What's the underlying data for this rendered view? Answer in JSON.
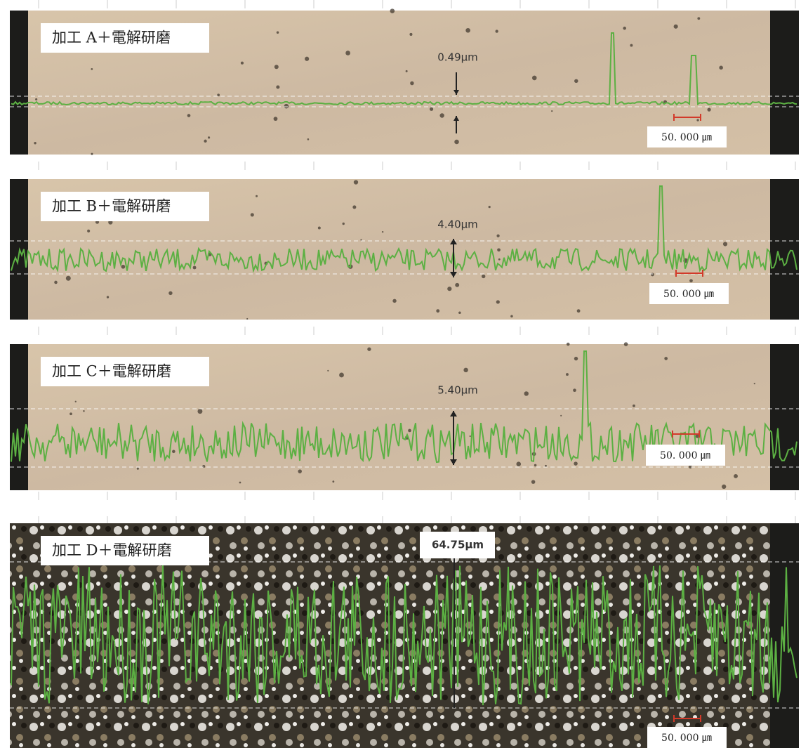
{
  "panels": [
    {
      "label": "加工 A＋電解研磨",
      "measurement": "0.49μm",
      "scale": "50. 000 ㎛"
    },
    {
      "label": "加工 B＋電解研磨",
      "measurement": "4.40μm",
      "scale": "50. 000 ㎛"
    },
    {
      "label": "加工 C＋電解研磨",
      "measurement": "5.40μm",
      "scale": "50. 000 ㎛"
    },
    {
      "label": "加工 D＋電解研磨",
      "measurement": "64.75μm",
      "scale": "50. 000 ㎛"
    }
  ]
}
